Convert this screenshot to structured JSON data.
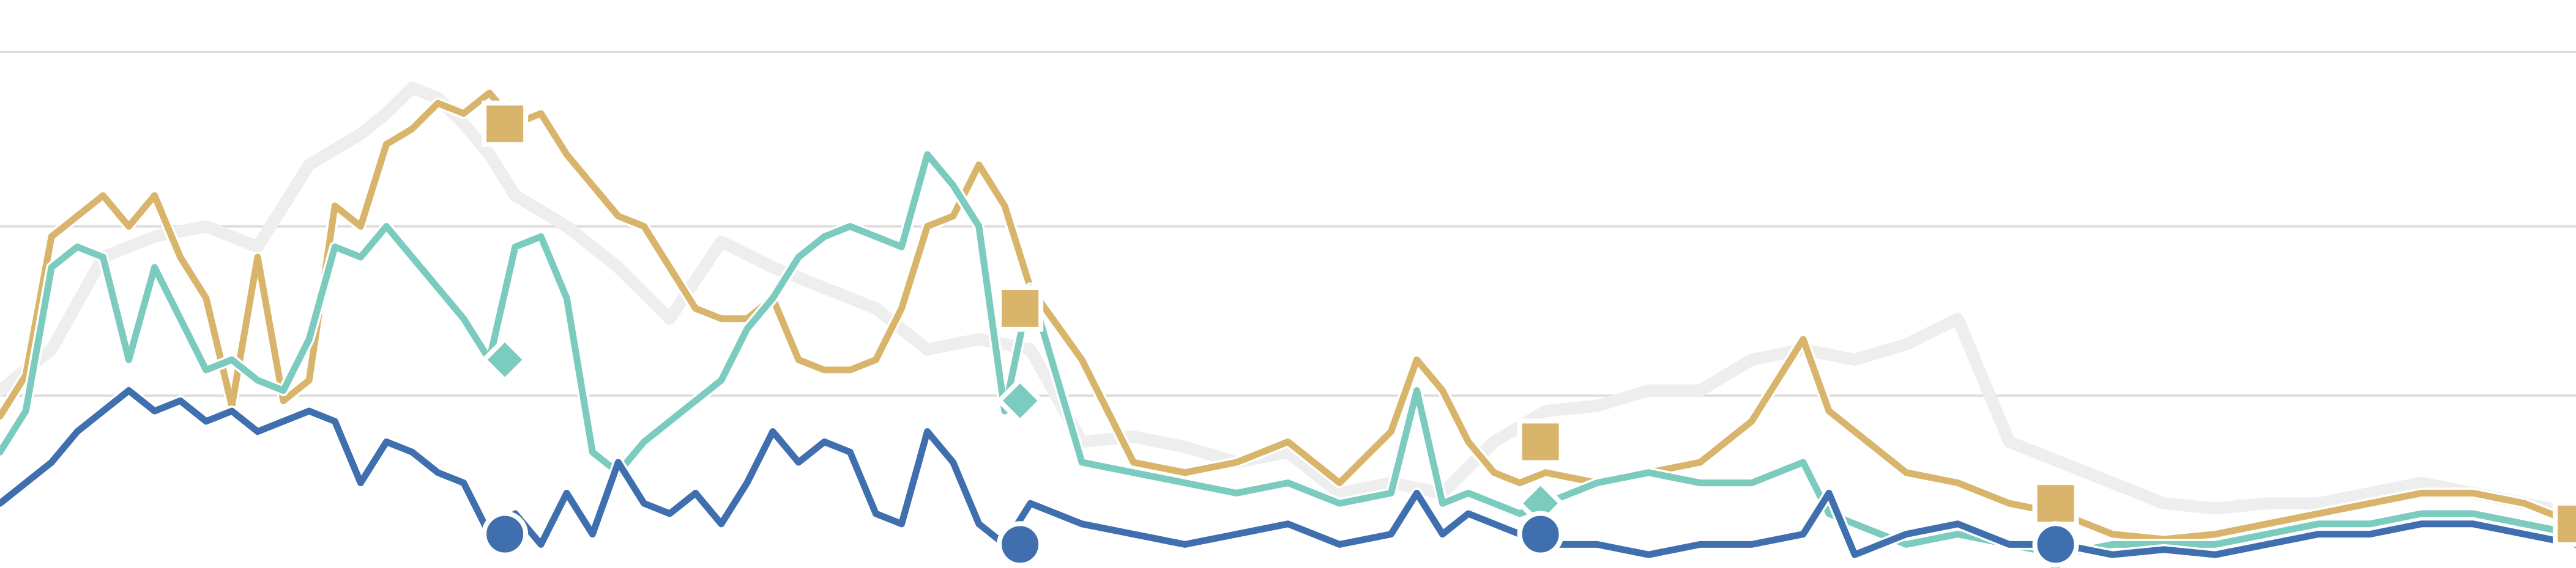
{
  "chart_data": {
    "type": "line",
    "title": "",
    "xlabel": "",
    "ylabel": "",
    "xlim": [
      0,
      100
    ],
    "ylim": [
      0,
      100
    ],
    "grid": true,
    "grid_y": [
      33,
      66,
      100
    ],
    "colors": {
      "background": "#ffffff",
      "grid": "#dddddd",
      "gray": "#eeeeee",
      "gold": "#d8b56a",
      "teal": "#7ccbbf",
      "blue": "#3f6fae"
    },
    "series": [
      {
        "key": "gray",
        "color": "#eeeeee",
        "marker": "none",
        "x": [
          0,
          2,
          4,
          6,
          8,
          10,
          12,
          14,
          15,
          16,
          17,
          18,
          19,
          20,
          22,
          24,
          26,
          28,
          30,
          32,
          34,
          36,
          38,
          40,
          42,
          44,
          46,
          48,
          50,
          52,
          54,
          56,
          58,
          60,
          62,
          64,
          66,
          68,
          70,
          72,
          74,
          76,
          78,
          80,
          82,
          84,
          86,
          88,
          90,
          92,
          94,
          96,
          98,
          100
        ],
        "y": [
          34,
          42,
          60,
          64,
          66,
          62,
          78,
          84,
          88,
          93,
          91,
          86,
          80,
          72,
          66,
          58,
          48,
          63,
          58,
          54,
          50,
          42,
          44,
          42,
          24,
          25,
          23,
          20,
          22,
          14,
          16,
          14,
          24,
          30,
          31,
          34,
          34,
          40,
          42,
          40,
          43,
          48,
          24,
          20,
          16,
          12,
          11,
          12,
          12,
          14,
          16,
          14,
          12,
          10
        ]
      },
      {
        "key": "gold",
        "color": "#d8b56a",
        "marker": "square",
        "marker_x": [
          19.6,
          39.6,
          59.8,
          79.8,
          100
        ],
        "marker_y": [
          86,
          50,
          24,
          12,
          8
        ],
        "x": [
          0,
          1,
          2,
          3,
          4,
          5,
          6,
          7,
          8,
          9,
          10,
          11,
          12,
          13,
          14,
          15,
          16,
          17,
          18,
          19,
          20,
          21,
          22,
          23,
          24,
          25,
          26,
          27,
          28,
          29,
          30,
          31,
          32,
          33,
          34,
          35,
          36,
          37,
          38,
          39,
          40,
          42,
          44,
          46,
          48,
          50,
          52,
          54,
          55,
          56,
          57,
          58,
          59,
          60,
          62,
          64,
          66,
          68,
          70,
          71,
          72,
          73,
          74,
          76,
          78,
          80,
          82,
          84,
          86,
          88,
          90,
          92,
          94,
          96,
          98,
          100
        ],
        "y": [
          29,
          37,
          64,
          68,
          72,
          66,
          72,
          60,
          52,
          31,
          60,
          32,
          36,
          70,
          66,
          82,
          85,
          90,
          88,
          92,
          86,
          88,
          80,
          74,
          68,
          66,
          58,
          50,
          48,
          48,
          52,
          40,
          38,
          38,
          40,
          50,
          66,
          68,
          78,
          70,
          54,
          40,
          20,
          18,
          20,
          24,
          16,
          26,
          40,
          34,
          24,
          18,
          16,
          18,
          16,
          18,
          20,
          28,
          44,
          30,
          26,
          22,
          18,
          16,
          12,
          10,
          6,
          5,
          6,
          8,
          10,
          12,
          14,
          14,
          12,
          8
        ]
      },
      {
        "key": "teal",
        "color": "#7ccbbf",
        "marker": "diamond",
        "marker_x": [
          19.6,
          39.6,
          59.8,
          79.8
        ],
        "marker_y": [
          40,
          32,
          12,
          2
        ],
        "x": [
          0,
          1,
          2,
          3,
          4,
          5,
          6,
          7,
          8,
          9,
          10,
          11,
          12,
          13,
          14,
          15,
          16,
          17,
          18,
          19,
          20,
          21,
          22,
          23,
          24,
          25,
          26,
          27,
          28,
          29,
          30,
          31,
          32,
          33,
          34,
          35,
          36,
          37,
          38,
          39,
          40,
          42,
          44,
          46,
          48,
          50,
          52,
          54,
          55,
          56,
          57,
          58,
          59,
          60,
          62,
          64,
          66,
          68,
          70,
          71,
          72,
          73,
          74,
          76,
          78,
          80,
          82,
          84,
          86,
          88,
          90,
          92,
          94,
          96,
          98,
          100
        ],
        "y": [
          22,
          30,
          58,
          62,
          60,
          40,
          58,
          48,
          38,
          40,
          36,
          34,
          44,
          62,
          60,
          66,
          60,
          54,
          48,
          40,
          62,
          64,
          52,
          22,
          18,
          24,
          28,
          32,
          36,
          46,
          52,
          60,
          64,
          66,
          64,
          62,
          80,
          74,
          66,
          30,
          54,
          20,
          18,
          16,
          14,
          16,
          12,
          14,
          34,
          12,
          14,
          12,
          10,
          12,
          16,
          18,
          16,
          16,
          20,
          10,
          8,
          6,
          4,
          6,
          4,
          2,
          4,
          4,
          4,
          6,
          8,
          8,
          10,
          10,
          8,
          6
        ]
      },
      {
        "key": "blue",
        "color": "#3f6fae",
        "marker": "circle",
        "marker_x": [
          19.6,
          39.6,
          59.8,
          79.8
        ],
        "marker_y": [
          6,
          4,
          6,
          4
        ],
        "x": [
          0,
          1,
          2,
          3,
          4,
          5,
          6,
          7,
          8,
          9,
          10,
          11,
          12,
          13,
          14,
          15,
          16,
          17,
          18,
          19,
          20,
          21,
          22,
          23,
          24,
          25,
          26,
          27,
          28,
          29,
          30,
          31,
          32,
          33,
          34,
          35,
          36,
          37,
          38,
          39,
          40,
          42,
          44,
          46,
          48,
          50,
          52,
          54,
          55,
          56,
          57,
          58,
          59,
          60,
          62,
          64,
          66,
          68,
          70,
          71,
          72,
          73,
          74,
          76,
          78,
          80,
          82,
          84,
          86,
          88,
          90,
          92,
          94,
          96,
          98,
          100
        ],
        "y": [
          12,
          16,
          20,
          26,
          30,
          34,
          30,
          32,
          28,
          30,
          26,
          28,
          30,
          28,
          16,
          24,
          22,
          18,
          16,
          6,
          10,
          4,
          14,
          6,
          20,
          12,
          10,
          14,
          8,
          16,
          26,
          20,
          24,
          22,
          10,
          8,
          26,
          20,
          8,
          4,
          12,
          8,
          6,
          4,
          6,
          8,
          4,
          6,
          14,
          6,
          10,
          8,
          6,
          4,
          4,
          2,
          4,
          4,
          6,
          14,
          2,
          4,
          6,
          8,
          4,
          4,
          2,
          3,
          2,
          4,
          6,
          6,
          8,
          8,
          6,
          4
        ]
      }
    ]
  }
}
